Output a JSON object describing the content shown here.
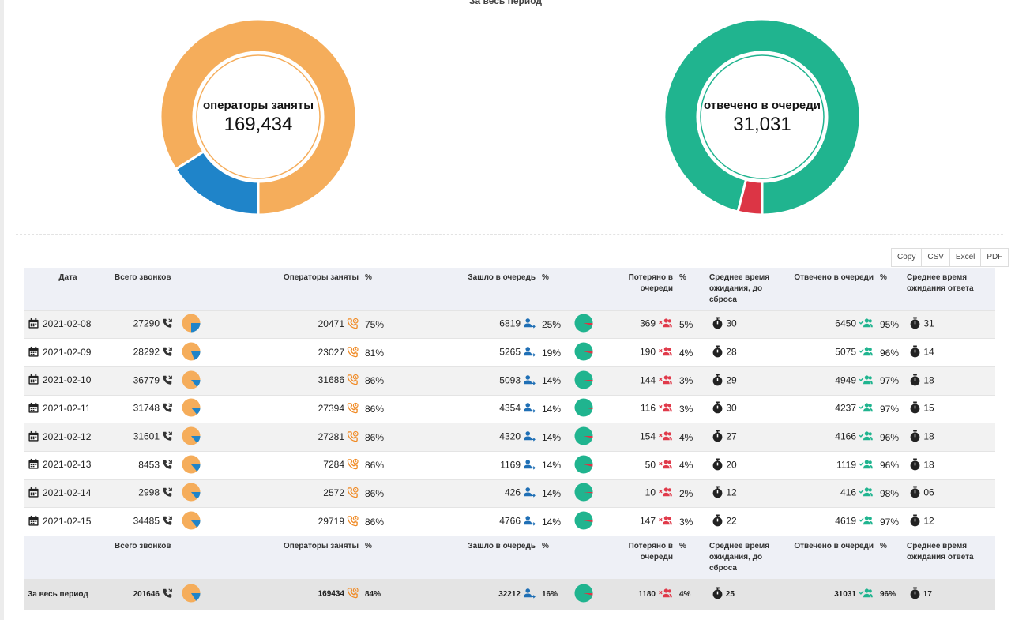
{
  "header_title": "За весь период",
  "colors": {
    "busy": "#f5ad5b",
    "free": "#1f84c9",
    "answered": "#20b48f",
    "lost": "#dc3545",
    "queue_icon": "#1f6fb5",
    "lost_icon": "#e03a4a",
    "answered_icon": "#20b48f"
  },
  "donut_busy": {
    "label": "операторы заняты",
    "value": "169,434",
    "fraction": 0.84
  },
  "donut_answered": {
    "label": "отвечено в очереди",
    "value": "31,031",
    "fraction": 0.96
  },
  "exports": [
    "Copy",
    "CSV",
    "Excel",
    "PDF"
  ],
  "columns": {
    "date": "Дата",
    "total": "Всего звонков",
    "busy": "Операторы заняты",
    "busy_pct": "%",
    "queue": "Зашло в очередь",
    "queue_pct": "%",
    "lost": "Потеряно в очереди",
    "lost_pct": "%",
    "wait_drop": "Среднее время ожидания, до сброса",
    "answered": "Отвечено в очереди",
    "answered_pct": "%",
    "wait_answer": "Среднее время ожидания ответа"
  },
  "rows": [
    {
      "date": "2021-02-08",
      "total": "27290",
      "busy": "20471",
      "busy_pct": "75%",
      "queue": "6819",
      "queue_pct": "25%",
      "lost": "369",
      "lost_pct": "5%",
      "wait_drop": "30",
      "answered": "6450",
      "answered_pct": "95%",
      "wait_answer": "31"
    },
    {
      "date": "2021-02-09",
      "total": "28292",
      "busy": "23027",
      "busy_pct": "81%",
      "queue": "5265",
      "queue_pct": "19%",
      "lost": "190",
      "lost_pct": "4%",
      "wait_drop": "28",
      "answered": "5075",
      "answered_pct": "96%",
      "wait_answer": "14"
    },
    {
      "date": "2021-02-10",
      "total": "36779",
      "busy": "31686",
      "busy_pct": "86%",
      "queue": "5093",
      "queue_pct": "14%",
      "lost": "144",
      "lost_pct": "3%",
      "wait_drop": "29",
      "answered": "4949",
      "answered_pct": "97%",
      "wait_answer": "18"
    },
    {
      "date": "2021-02-11",
      "total": "31748",
      "busy": "27394",
      "busy_pct": "86%",
      "queue": "4354",
      "queue_pct": "14%",
      "lost": "116",
      "lost_pct": "3%",
      "wait_drop": "30",
      "answered": "4237",
      "answered_pct": "97%",
      "wait_answer": "15"
    },
    {
      "date": "2021-02-12",
      "total": "31601",
      "busy": "27281",
      "busy_pct": "86%",
      "queue": "4320",
      "queue_pct": "14%",
      "lost": "154",
      "lost_pct": "4%",
      "wait_drop": "27",
      "answered": "4166",
      "answered_pct": "96%",
      "wait_answer": "18"
    },
    {
      "date": "2021-02-13",
      "total": "8453",
      "busy": "7284",
      "busy_pct": "86%",
      "queue": "1169",
      "queue_pct": "14%",
      "lost": "50",
      "lost_pct": "4%",
      "wait_drop": "20",
      "answered": "1119",
      "answered_pct": "96%",
      "wait_answer": "18"
    },
    {
      "date": "2021-02-14",
      "total": "2998",
      "busy": "2572",
      "busy_pct": "86%",
      "queue": "426",
      "queue_pct": "14%",
      "lost": "10",
      "lost_pct": "2%",
      "wait_drop": "12",
      "answered": "416",
      "answered_pct": "98%",
      "wait_answer": "06"
    },
    {
      "date": "2021-02-15",
      "total": "34485",
      "busy": "29719",
      "busy_pct": "86%",
      "queue": "4766",
      "queue_pct": "14%",
      "lost": "147",
      "lost_pct": "3%",
      "wait_drop": "22",
      "answered": "4619",
      "answered_pct": "97%",
      "wait_answer": "12"
    }
  ],
  "total": {
    "label": "За весь период",
    "total": "201646",
    "busy": "169434",
    "busy_pct": "84%",
    "queue": "32212",
    "queue_pct": "16%",
    "lost": "1180",
    "lost_pct": "4%",
    "wait_drop": "25",
    "answered": "31031",
    "answered_pct": "96%",
    "wait_answer": "17"
  }
}
